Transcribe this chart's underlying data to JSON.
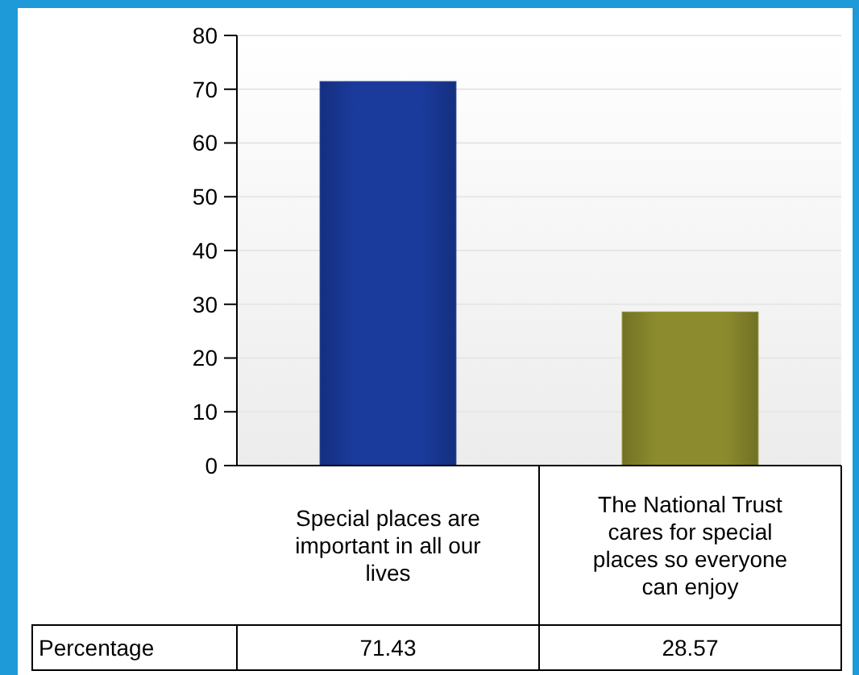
{
  "chart_data": {
    "type": "bar",
    "categories": [
      "Special places are important in all our lives",
      "The National Trust cares for special places so everyone can enjoy"
    ],
    "series": [
      {
        "name": "Percentage",
        "colors": [
          "#1a3a9c",
          "#8c8c2e"
        ],
        "values": [
          71.43,
          28.57
        ]
      }
    ],
    "ylim": [
      0,
      80
    ],
    "yticks": [
      0,
      10,
      20,
      30,
      40,
      50,
      60,
      70,
      80
    ],
    "grid": "y",
    "data_labels": true
  }
}
